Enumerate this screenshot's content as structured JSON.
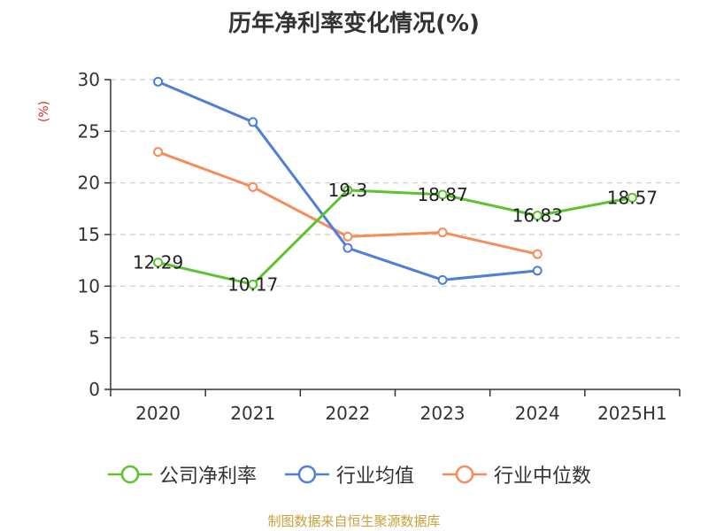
{
  "chart_data": {
    "type": "line",
    "title": "历年净利率变化情况(%)",
    "ylabel": "(%)",
    "xlabel": "",
    "categories": [
      "2020",
      "2021",
      "2022",
      "2023",
      "2024",
      "2025H1"
    ],
    "ylim": [
      0,
      30
    ],
    "yticks": [
      0,
      5,
      10,
      15,
      20,
      25,
      30
    ],
    "grid": true,
    "legend_position": "bottom",
    "series": [
      {
        "name": "公司净利率",
        "color": "#5cc22d",
        "values": [
          12.29,
          10.17,
          19.3,
          18.87,
          16.83,
          18.57
        ],
        "labels": [
          "12.29",
          "10.17",
          "19.3",
          "18.87",
          "16.83",
          "18.57"
        ]
      },
      {
        "name": "行业均值",
        "color": "#4f7fdb",
        "values": [
          29.8,
          25.9,
          13.7,
          10.6,
          11.5,
          null
        ]
      },
      {
        "name": "行业中位数",
        "color": "#f58c5a",
        "values": [
          23.0,
          19.6,
          14.8,
          15.2,
          13.1,
          null
        ]
      }
    ]
  },
  "colors": {
    "ylabel": "#d9312b",
    "axis": "#333333",
    "grid": "#cccccc",
    "source": "#c9a13a"
  },
  "source_text": "制图数据来自恒生聚源数据库"
}
